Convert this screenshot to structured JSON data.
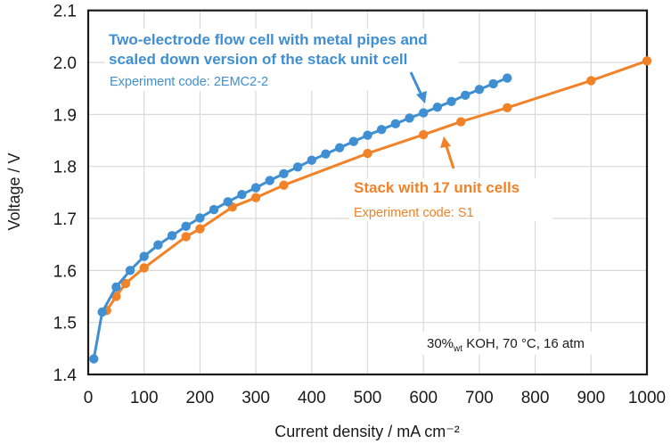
{
  "chart_data": {
    "type": "line",
    "title": "",
    "xlabel": "Current density / mA cm⁻²",
    "ylabel": "Voltage / V",
    "xlim": [
      0,
      1000
    ],
    "ylim": [
      1.4,
      2.1
    ],
    "xticks": [
      0,
      100,
      200,
      300,
      400,
      500,
      600,
      700,
      800,
      900,
      1000
    ],
    "yticks": [
      1.4,
      1.5,
      1.6,
      1.7,
      1.8,
      1.9,
      2.0,
      2.1
    ],
    "xtick_labels": [
      "0",
      "100",
      "200",
      "300",
      "400",
      "500",
      "600",
      "700",
      "800",
      "900",
      "1000"
    ],
    "ytick_labels": [
      "1.4",
      "1.5",
      "1.6",
      "1.7",
      "1.8",
      "1.9",
      "2.0",
      "2.1"
    ],
    "grid": true,
    "legend": "none (inline annotations)",
    "series": [
      {
        "name": "Two-electrode flow cell with metal pipes and scaled down version of the stack unit cell",
        "code": "Experiment code: 2EMC2-2",
        "color": "#3f8fd2",
        "x": [
          10,
          25,
          50,
          75,
          100,
          125,
          150,
          175,
          200,
          225,
          250,
          275,
          300,
          325,
          350,
          375,
          400,
          425,
          450,
          475,
          500,
          525,
          550,
          575,
          600,
          625,
          650,
          675,
          700,
          725,
          750
        ],
        "y": [
          1.43,
          1.52,
          1.568,
          1.6,
          1.627,
          1.649,
          1.667,
          1.685,
          1.701,
          1.717,
          1.732,
          1.746,
          1.759,
          1.773,
          1.786,
          1.799,
          1.812,
          1.824,
          1.836,
          1.848,
          1.86,
          1.871,
          1.882,
          1.893,
          1.903,
          1.914,
          1.925,
          1.937,
          1.948,
          1.959,
          1.97
        ]
      },
      {
        "name": "Stack with 17 unit cells",
        "code": "Experiment code: S1",
        "color": "#f28228",
        "x": [
          33,
          50,
          67,
          100,
          175,
          200,
          258,
          300,
          350,
          500,
          600,
          667,
          750,
          900,
          1000
        ],
        "y": [
          1.523,
          1.55,
          1.575,
          1.605,
          1.665,
          1.68,
          1.722,
          1.74,
          1.764,
          1.825,
          1.861,
          1.886,
          1.913,
          1.965,
          2.003
        ]
      }
    ],
    "annotations": {
      "blue_title_line1": "Two-electrode flow cell with metal pipes and",
      "blue_title_line2": "scaled down version of the stack unit cell",
      "blue_code": "Experiment code: 2EMC2-2",
      "orange_title": "Stack with 17 unit cells",
      "orange_code": "Experiment code: S1",
      "conditions_prefix": "30%",
      "conditions_sub": "wt",
      "conditions_suffix": " KOH, 70 °C, 16 atm"
    }
  }
}
